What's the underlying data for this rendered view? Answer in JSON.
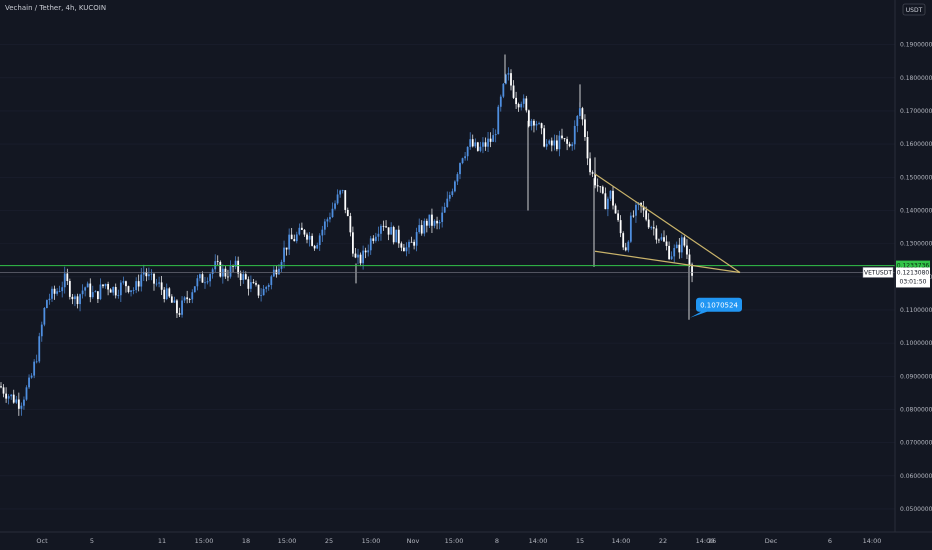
{
  "chart_title": "Vechain / Tether, 4h, KUCOIN",
  "currency_badge": "USDT",
  "chart_data": {
    "type": "candlestick",
    "title": "Vechain / Tether, 4h, KUCOIN",
    "symbol": "VETUSDT",
    "ylim": [
      0.045,
      0.2
    ],
    "y_ticks": [
      "0.1900000",
      "0.1800000",
      "0.1700000",
      "0.1600000",
      "0.1500000",
      "0.1400000",
      "0.1300000",
      "0.1200000",
      "0.1100000",
      "0.1000000",
      "0.0900000",
      "0.0800000",
      "0.0700000",
      "0.0600000",
      "0.0500000"
    ],
    "x_ticks": [
      "Oct",
      "5",
      "11",
      "15:00",
      "18",
      "15:00",
      "25",
      "15:00",
      "Nov",
      "15:00",
      "8",
      "14:00",
      "15",
      "14:00",
      "22",
      "14:00",
      "26",
      "Dec",
      "6",
      "14:00"
    ],
    "path_points": [
      [
        0,
        0.087
      ],
      [
        10,
        0.084
      ],
      [
        20,
        0.082
      ],
      [
        30,
        0.088
      ],
      [
        38,
        0.098
      ],
      [
        46,
        0.113
      ],
      [
        55,
        0.115
      ],
      [
        65,
        0.119
      ],
      [
        75,
        0.113
      ],
      [
        85,
        0.117
      ],
      [
        95,
        0.114
      ],
      [
        105,
        0.118
      ],
      [
        115,
        0.116
      ],
      [
        125,
        0.118
      ],
      [
        135,
        0.116
      ],
      [
        143,
        0.122
      ],
      [
        150,
        0.119
      ],
      [
        160,
        0.117
      ],
      [
        170,
        0.113
      ],
      [
        178,
        0.109
      ],
      [
        186,
        0.113
      ],
      [
        195,
        0.118
      ],
      [
        205,
        0.12
      ],
      [
        215,
        0.123
      ],
      [
        225,
        0.121
      ],
      [
        235,
        0.123
      ],
      [
        245,
        0.119
      ],
      [
        255,
        0.116
      ],
      [
        262,
        0.115
      ],
      [
        270,
        0.119
      ],
      [
        278,
        0.124
      ],
      [
        287,
        0.13
      ],
      [
        296,
        0.132
      ],
      [
        305,
        0.134
      ],
      [
        315,
        0.13
      ],
      [
        325,
        0.136
      ],
      [
        333,
        0.141
      ],
      [
        342,
        0.146
      ],
      [
        350,
        0.134
      ],
      [
        356,
        0.124
      ],
      [
        363,
        0.126
      ],
      [
        372,
        0.132
      ],
      [
        382,
        0.137
      ],
      [
        392,
        0.133
      ],
      [
        400,
        0.131
      ],
      [
        408,
        0.128
      ],
      [
        418,
        0.133
      ],
      [
        428,
        0.137
      ],
      [
        438,
        0.135
      ],
      [
        447,
        0.142
      ],
      [
        455,
        0.15
      ],
      [
        462,
        0.157
      ],
      [
        470,
        0.16
      ],
      [
        478,
        0.158
      ],
      [
        486,
        0.16
      ],
      [
        494,
        0.162
      ],
      [
        500,
        0.172
      ],
      [
        507,
        0.181
      ],
      [
        512,
        0.177
      ],
      [
        517,
        0.173
      ],
      [
        522,
        0.174
      ],
      [
        528,
        0.167
      ],
      [
        535,
        0.168
      ],
      [
        541,
        0.163
      ],
      [
        548,
        0.159
      ],
      [
        555,
        0.16
      ],
      [
        562,
        0.161
      ],
      [
        570,
        0.159
      ],
      [
        576,
        0.166
      ],
      [
        580,
        0.171
      ],
      [
        585,
        0.163
      ],
      [
        590,
        0.152
      ],
      [
        597,
        0.148
      ],
      [
        604,
        0.142
      ],
      [
        611,
        0.145
      ],
      [
        618,
        0.136
      ],
      [
        625,
        0.128
      ],
      [
        632,
        0.138
      ],
      [
        640,
        0.141
      ],
      [
        648,
        0.137
      ],
      [
        655,
        0.134
      ],
      [
        662,
        0.131
      ],
      [
        670,
        0.127
      ],
      [
        677,
        0.128
      ],
      [
        683,
        0.131
      ],
      [
        687,
        0.127
      ],
      [
        690,
        0.125
      ],
      [
        693,
        0.1213
      ]
    ],
    "wick_highs": [
      [
        505,
        0.187
      ],
      [
        580,
        0.178
      ],
      [
        595,
        0.156
      ]
    ],
    "wick_lows": [
      [
        356,
        0.118
      ],
      [
        528,
        0.14
      ],
      [
        594,
        0.123
      ],
      [
        689,
        0.1070524
      ]
    ],
    "support_level": 0.1233736,
    "support_label": "0.1233736",
    "last_price": 0.121308,
    "last_price_label": "0.1213080",
    "countdown": "03:01:50",
    "low_callout": "0.1070524",
    "triangle_upper": [
      [
        595,
        0.151
      ],
      [
        740,
        0.1213
      ]
    ],
    "triangle_lower": [
      [
        595,
        0.1277
      ],
      [
        740,
        0.1213
      ]
    ],
    "colors": {
      "background": "#131722",
      "candle_up": "#4f8fe0",
      "candle_down": "#ffffff",
      "support_line": "#33c449",
      "trendline": "#c9b36a",
      "callout": "#2196f3",
      "price_line": "#787b86"
    }
  }
}
